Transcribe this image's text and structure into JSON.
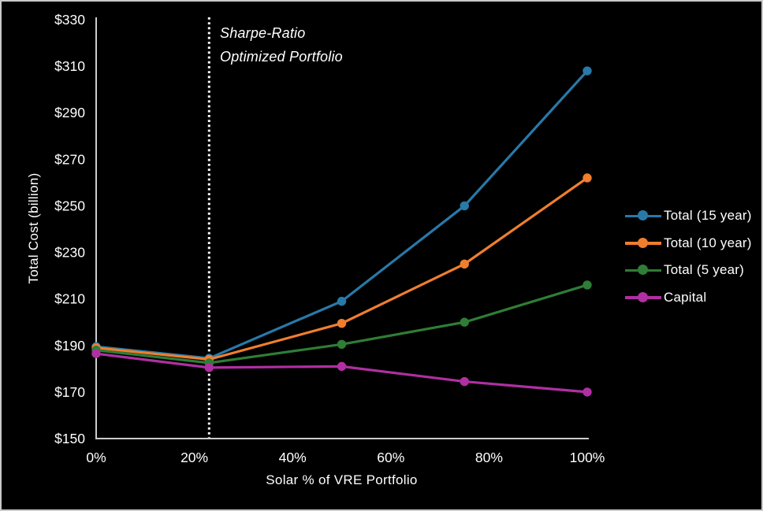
{
  "frame": {
    "background": "#000000",
    "border_color": "#c9c9c9"
  },
  "annotation": {
    "line1": "Sharpe-Ratio",
    "line2": "Optimized Portfolio",
    "x_value": 23
  },
  "chart_data": {
    "type": "line",
    "title": "",
    "xlabel": "Solar % of VRE Portfolio",
    "ylabel": "Total Cost (billion)",
    "xlim": [
      0,
      100
    ],
    "ylim": [
      150,
      330
    ],
    "grid": false,
    "legend_position": "right",
    "axis_color": "#cccccc",
    "text_color": "#ffffff",
    "x_ticks": [
      {
        "value": 0,
        "label": "0%"
      },
      {
        "value": 20,
        "label": "20%"
      },
      {
        "value": 40,
        "label": "40%"
      },
      {
        "value": 60,
        "label": "60%"
      },
      {
        "value": 80,
        "label": "80%"
      },
      {
        "value": 100,
        "label": "100%"
      }
    ],
    "y_ticks": [
      {
        "value": 150,
        "label": "$150"
      },
      {
        "value": 170,
        "label": "$170"
      },
      {
        "value": 190,
        "label": "$190"
      },
      {
        "value": 210,
        "label": "$210"
      },
      {
        "value": 230,
        "label": "$230"
      },
      {
        "value": 250,
        "label": "$250"
      },
      {
        "value": 270,
        "label": "$270"
      },
      {
        "value": 290,
        "label": "$290"
      },
      {
        "value": 310,
        "label": "$310"
      },
      {
        "value": 330,
        "label": "$330"
      }
    ],
    "reference_line": {
      "x": 23,
      "style": "dotted",
      "color": "#ffffff",
      "label": "Sharpe-Ratio Optimized Portfolio"
    },
    "x": [
      0,
      23,
      50,
      75,
      100
    ],
    "series": [
      {
        "name": "Total (15 year)",
        "color": "#2879a8",
        "values": [
          189.5,
          184.5,
          209,
          250,
          308
        ]
      },
      {
        "name": "Total (10 year)",
        "color": "#f07e2f",
        "values": [
          189,
          184,
          199.5,
          225,
          262
        ]
      },
      {
        "name": "Total (5 year)",
        "color": "#2f7d36",
        "values": [
          188,
          182.5,
          190.5,
          200,
          216
        ]
      },
      {
        "name": "Capital",
        "color": "#b02fa3",
        "values": [
          186.5,
          180.5,
          181,
          174.5,
          170
        ]
      }
    ]
  }
}
